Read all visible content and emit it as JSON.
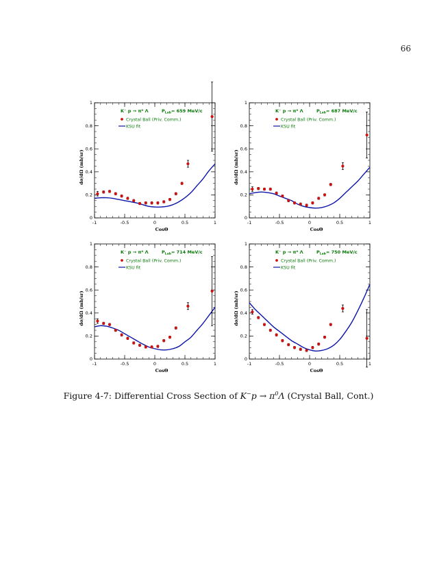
{
  "page": {
    "number": "66",
    "caption_prefix": "Figure 4-7: Differential Cross Section of ",
    "caption_suffix": " (Crystal Ball, Cont.)"
  },
  "colors": {
    "data": "#cc1111",
    "fit": "#0a14a8",
    "legend_text": "#0a7a0a",
    "axis": "#000000"
  },
  "chart_data": [
    {
      "type": "scatter",
      "title": "K⁻ p → π⁰ Λ   Pₗₐᵦ= 659 MeV/c",
      "reaction": "K⁻ p → π⁰ Λ",
      "plab_label": "P",
      "plab_sub": "Lab",
      "plab_value": "= 659 MeV/c",
      "xlabel": "CosΘ",
      "ylabel": "dσ/dΩ (mb/sr)",
      "xlim": [
        -1,
        1
      ],
      "ylim": [
        0,
        1
      ],
      "xticks": [
        "-1",
        "-0.5",
        "0",
        "0.5",
        "1"
      ],
      "yticks": [
        "0",
        "0.2",
        "0.4",
        "0.6",
        "0.8",
        "1"
      ],
      "series": [
        {
          "name": "Crystal Ball (Priv. Comm.)",
          "x": [
            -0.95,
            -0.85,
            -0.75,
            -0.65,
            -0.55,
            -0.45,
            -0.35,
            -0.25,
            -0.15,
            -0.05,
            0.05,
            0.15,
            0.25,
            0.35,
            0.45,
            0.55,
            0.65,
            0.75,
            0.85,
            0.95
          ],
          "y": [
            0.21,
            0.2,
            0.22,
            0.23,
            0.21,
            0.19,
            0.17,
            0.15,
            0.125,
            0.115,
            0.13,
            0.13,
            0.135,
            0.14,
            0.16,
            0.21,
            0.3,
            0.47,
            0.87,
            0.88
          ],
          "err": [
            0.02,
            0.01,
            0.01,
            0.01,
            0.01,
            0.01,
            0.01,
            0.01,
            0.01,
            0.01,
            0.01,
            0.01,
            0.01,
            0.01,
            0.01,
            0.01,
            0.01,
            0.02,
            0.3,
            0.3
          ]
        },
        {
          "name": "KSU fit",
          "x": [
            -1,
            -0.9,
            -0.8,
            -0.7,
            -0.6,
            -0.5,
            -0.4,
            -0.3,
            -0.2,
            -0.1,
            0,
            0.1,
            0.2,
            0.3,
            0.4,
            0.5,
            0.6,
            0.7,
            0.8,
            0.9,
            1
          ],
          "y": [
            0.17,
            0.175,
            0.175,
            0.17,
            0.16,
            0.15,
            0.14,
            0.13,
            0.115,
            0.1,
            0.095,
            0.095,
            0.1,
            0.115,
            0.14,
            0.175,
            0.22,
            0.28,
            0.34,
            0.41,
            0.47
          ]
        }
      ],
      "display_points": [
        {
          "x": -0.95,
          "y": 0.21,
          "e": 0.02
        },
        {
          "x": -0.85,
          "y": 0.225,
          "e": 0.01
        },
        {
          "x": -0.75,
          "y": 0.23,
          "e": 0.01
        },
        {
          "x": -0.65,
          "y": 0.21,
          "e": 0.01
        },
        {
          "x": -0.55,
          "y": 0.19,
          "e": 0.01
        },
        {
          "x": -0.45,
          "y": 0.17,
          "e": 0.01
        },
        {
          "x": -0.35,
          "y": 0.15,
          "e": 0.01
        },
        {
          "x": -0.25,
          "y": 0.125,
          "e": 0.01
        },
        {
          "x": -0.15,
          "y": 0.13,
          "e": 0.01
        },
        {
          "x": -0.05,
          "y": 0.13,
          "e": 0.01
        },
        {
          "x": 0.05,
          "y": 0.13,
          "e": 0.01
        },
        {
          "x": 0.15,
          "y": 0.14,
          "e": 0.01
        },
        {
          "x": 0.25,
          "y": 0.16,
          "e": 0.01
        },
        {
          "x": 0.35,
          "y": 0.21,
          "e": 0.01
        },
        {
          "x": 0.45,
          "y": 0.3,
          "e": 0.01
        },
        {
          "x": 0.55,
          "y": 0.47,
          "e": 0.03
        },
        {
          "x": 0.95,
          "y": 0.88,
          "e": 0.3
        }
      ]
    },
    {
      "type": "scatter",
      "reaction": "K⁻ p → π⁰ Λ",
      "plab_label": "P",
      "plab_sub": "Lab",
      "plab_value": "= 687 MeV/c",
      "xlabel": "CosΘ",
      "ylabel": "dσ/dΩ (mb/sr)",
      "xlim": [
        -1,
        1
      ],
      "ylim": [
        0,
        1
      ],
      "xticks": [
        "-1",
        "-0.5",
        "0",
        "0.5",
        "1"
      ],
      "yticks": [
        "0",
        "0.2",
        "0.4",
        "0.6",
        "0.8",
        "1"
      ],
      "series": [
        {
          "name": "Crystal Ball (Priv. Comm.)",
          "x": [
            -0.95,
            -0.85,
            -0.75,
            -0.65,
            -0.55,
            -0.45,
            -0.35,
            -0.25,
            -0.15,
            -0.05,
            0.05,
            0.15,
            0.25,
            0.35,
            0.45,
            0.55,
            0.65,
            0.75,
            0.85,
            0.95
          ],
          "y": [
            0.25,
            0.26,
            0.25,
            0.25,
            0.25,
            0.21,
            0.19,
            0.15,
            0.13,
            0.12,
            0.11,
            0.13,
            0.17,
            0.2,
            0.29,
            0.45,
            0.72,
            0.72,
            0.72,
            0.72
          ],
          "err": [
            0.02,
            0.01,
            0.01,
            0.01,
            0.01,
            0.01,
            0.01,
            0.01,
            0.01,
            0.01,
            0.01,
            0.01,
            0.01,
            0.01,
            0.01,
            0.03,
            0.2,
            0.2,
            0.2,
            0.2
          ]
        },
        {
          "name": "KSU fit",
          "x": [
            -1,
            -0.9,
            -0.8,
            -0.7,
            -0.6,
            -0.5,
            -0.4,
            -0.3,
            -0.2,
            -0.1,
            0,
            0.1,
            0.2,
            0.3,
            0.4,
            0.5,
            0.6,
            0.7,
            0.8,
            0.9,
            1
          ],
          "y": [
            0.21,
            0.22,
            0.225,
            0.22,
            0.21,
            0.19,
            0.17,
            0.15,
            0.12,
            0.1,
            0.09,
            0.085,
            0.09,
            0.105,
            0.13,
            0.17,
            0.22,
            0.27,
            0.32,
            0.38,
            0.44
          ]
        }
      ],
      "display_points": [
        {
          "x": -0.95,
          "y": 0.25,
          "e": 0.02
        },
        {
          "x": -0.85,
          "y": 0.255,
          "e": 0.01
        },
        {
          "x": -0.75,
          "y": 0.25,
          "e": 0.01
        },
        {
          "x": -0.65,
          "y": 0.25,
          "e": 0.01
        },
        {
          "x": -0.55,
          "y": 0.215,
          "e": 0.01
        },
        {
          "x": -0.45,
          "y": 0.19,
          "e": 0.01
        },
        {
          "x": -0.35,
          "y": 0.15,
          "e": 0.01
        },
        {
          "x": -0.25,
          "y": 0.13,
          "e": 0.01
        },
        {
          "x": -0.15,
          "y": 0.12,
          "e": 0.01
        },
        {
          "x": -0.05,
          "y": 0.11,
          "e": 0.01
        },
        {
          "x": 0.05,
          "y": 0.13,
          "e": 0.01
        },
        {
          "x": 0.15,
          "y": 0.17,
          "e": 0.01
        },
        {
          "x": 0.25,
          "y": 0.2,
          "e": 0.01
        },
        {
          "x": 0.35,
          "y": 0.29,
          "e": 0.01
        },
        {
          "x": 0.55,
          "y": 0.45,
          "e": 0.03
        },
        {
          "x": 0.95,
          "y": 0.72,
          "e": 0.2
        }
      ]
    },
    {
      "type": "scatter",
      "reaction": "K⁻ p → π⁰ Λ",
      "plab_label": "P",
      "plab_sub": "Lab",
      "plab_value": "= 714 MeV/c",
      "xlabel": "CosΘ",
      "ylabel": "dσ/dΩ (mb/sr)",
      "xlim": [
        -1,
        1
      ],
      "ylim": [
        0,
        1
      ],
      "xticks": [
        "-1",
        "-0.5",
        "0",
        "0.5",
        "1"
      ],
      "yticks": [
        "0",
        "0.2",
        "0.4",
        "0.6",
        "0.8",
        "1"
      ],
      "series": [
        {
          "name": "Crystal Ball (Priv. Comm.)",
          "x": [],
          "y": []
        },
        {
          "name": "KSU fit",
          "x": [
            -1,
            -0.9,
            -0.8,
            -0.7,
            -0.6,
            -0.5,
            -0.4,
            -0.3,
            -0.2,
            -0.1,
            0,
            0.1,
            0.2,
            0.3,
            0.4,
            0.5,
            0.6,
            0.7,
            0.8,
            0.9,
            1
          ],
          "y": [
            0.28,
            0.29,
            0.285,
            0.27,
            0.25,
            0.22,
            0.19,
            0.16,
            0.13,
            0.105,
            0.09,
            0.08,
            0.08,
            0.09,
            0.11,
            0.15,
            0.19,
            0.25,
            0.31,
            0.38,
            0.45
          ]
        }
      ],
      "display_points": [
        {
          "x": -0.95,
          "y": 0.33,
          "e": 0.02
        },
        {
          "x": -0.85,
          "y": 0.31,
          "e": 0.01
        },
        {
          "x": -0.75,
          "y": 0.3,
          "e": 0.01
        },
        {
          "x": -0.65,
          "y": 0.25,
          "e": 0.01
        },
        {
          "x": -0.55,
          "y": 0.21,
          "e": 0.01
        },
        {
          "x": -0.45,
          "y": 0.18,
          "e": 0.01
        },
        {
          "x": -0.35,
          "y": 0.14,
          "e": 0.01
        },
        {
          "x": -0.25,
          "y": 0.12,
          "e": 0.01
        },
        {
          "x": -0.15,
          "y": 0.105,
          "e": 0.01
        },
        {
          "x": -0.05,
          "y": 0.105,
          "e": 0.01
        },
        {
          "x": 0.05,
          "y": 0.11,
          "e": 0.01
        },
        {
          "x": 0.15,
          "y": 0.16,
          "e": 0.01
        },
        {
          "x": 0.25,
          "y": 0.19,
          "e": 0.01
        },
        {
          "x": 0.35,
          "y": 0.27,
          "e": 0.01
        },
        {
          "x": 0.55,
          "y": 0.46,
          "e": 0.03
        },
        {
          "x": 0.95,
          "y": 0.59,
          "e": 0.3
        }
      ]
    },
    {
      "type": "scatter",
      "reaction": "K⁻ p → π⁰ Λ",
      "plab_label": "P",
      "plab_sub": "Lab",
      "plab_value": "= 750 MeV/c",
      "xlabel": "CosΘ",
      "ylabel": "dσ/dΩ (mb/sr)",
      "xlim": [
        -1,
        1
      ],
      "ylim": [
        0,
        1
      ],
      "xticks": [
        "-1",
        "-0.5",
        "0",
        "0.5",
        "1"
      ],
      "yticks": [
        "0",
        "0.2",
        "0.4",
        "0.6",
        "0.8",
        "1"
      ],
      "series": [
        {
          "name": "Crystal Ball (Priv. Comm.)",
          "x": [],
          "y": []
        },
        {
          "name": "KSU fit",
          "x": [
            -1,
            -0.9,
            -0.8,
            -0.7,
            -0.6,
            -0.5,
            -0.4,
            -0.3,
            -0.2,
            -0.1,
            0,
            0.1,
            0.2,
            0.3,
            0.4,
            0.5,
            0.6,
            0.7,
            0.8,
            0.9,
            1
          ],
          "y": [
            0.49,
            0.43,
            0.38,
            0.33,
            0.28,
            0.24,
            0.2,
            0.16,
            0.13,
            0.1,
            0.08,
            0.07,
            0.075,
            0.09,
            0.12,
            0.17,
            0.24,
            0.32,
            0.42,
            0.53,
            0.65
          ]
        }
      ],
      "display_points": [
        {
          "x": -0.95,
          "y": 0.41,
          "e": 0.02
        },
        {
          "x": -0.85,
          "y": 0.36,
          "e": 0.01
        },
        {
          "x": -0.75,
          "y": 0.3,
          "e": 0.01
        },
        {
          "x": -0.65,
          "y": 0.25,
          "e": 0.01
        },
        {
          "x": -0.55,
          "y": 0.21,
          "e": 0.01
        },
        {
          "x": -0.45,
          "y": 0.16,
          "e": 0.01
        },
        {
          "x": -0.35,
          "y": 0.125,
          "e": 0.01
        },
        {
          "x": -0.25,
          "y": 0.1,
          "e": 0.01
        },
        {
          "x": -0.15,
          "y": 0.085,
          "e": 0.01
        },
        {
          "x": -0.05,
          "y": 0.075,
          "e": 0.01
        },
        {
          "x": 0.05,
          "y": 0.1,
          "e": 0.01
        },
        {
          "x": 0.15,
          "y": 0.13,
          "e": 0.01
        },
        {
          "x": 0.25,
          "y": 0.19,
          "e": 0.01
        },
        {
          "x": 0.35,
          "y": 0.3,
          "e": 0.01
        },
        {
          "x": 0.55,
          "y": 0.44,
          "e": 0.03
        },
        {
          "x": 0.95,
          "y": 0.18,
          "e": 0.25
        }
      ]
    }
  ]
}
